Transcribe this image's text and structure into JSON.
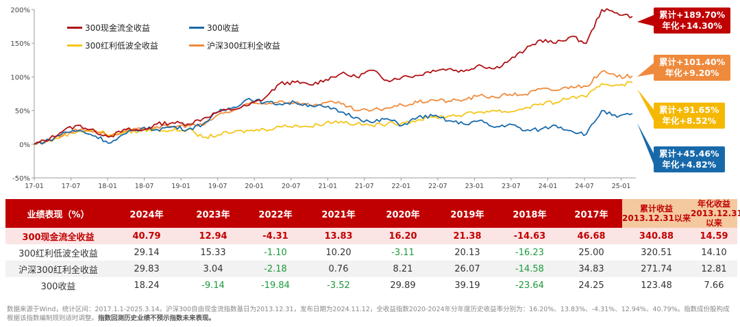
{
  "chart_data": {
    "type": "line",
    "x_ticks": [
      "17-01",
      "17-07",
      "18-01",
      "18-07",
      "19-01",
      "19-07",
      "20-01",
      "20-07",
      "21-01",
      "21-07",
      "22-01",
      "22-07",
      "23-01",
      "23-07",
      "24-01",
      "24-07",
      "25-01"
    ],
    "y_ticks": [
      "200%",
      "150%",
      "100%",
      "50%",
      "0%",
      "-50%"
    ],
    "ylim": [
      -50,
      200
    ],
    "series": [
      {
        "name": "300现金流全收益",
        "color": "#b00f12",
        "values": [
          0,
          8,
          22,
          28,
          18,
          12,
          22,
          20,
          30,
          32,
          30,
          38,
          48,
          52,
          58,
          68,
          90,
          92,
          88,
          96,
          105,
          100,
          110,
          95,
          100,
          102,
          110,
          112,
          108,
          118,
          112,
          125,
          140,
          155,
          150,
          160,
          150,
          200,
          195,
          189.7
        ]
      },
      {
        "name": "300收益",
        "color": "#1769aa",
        "values": [
          0,
          6,
          18,
          20,
          12,
          2,
          16,
          24,
          22,
          26,
          22,
          30,
          48,
          55,
          68,
          62,
          60,
          62,
          58,
          55,
          48,
          40,
          32,
          38,
          28,
          40,
          42,
          35,
          30,
          35,
          25,
          30,
          20,
          22,
          28,
          20,
          15,
          50,
          40,
          45.46
        ]
      },
      {
        "name": "300红利低波全收益",
        "color": "#f5c518",
        "values": [
          0,
          5,
          14,
          20,
          20,
          14,
          18,
          20,
          22,
          20,
          22,
          10,
          14,
          18,
          20,
          22,
          26,
          28,
          26,
          32,
          34,
          30,
          28,
          30,
          32,
          36,
          40,
          42,
          44,
          48,
          50,
          48,
          54,
          60,
          62,
          70,
          70,
          90,
          88,
          91.65
        ]
      },
      {
        "name": "沪深300红利全收益",
        "color": "#ef8a3c",
        "values": [
          0,
          6,
          16,
          22,
          20,
          12,
          20,
          22,
          26,
          26,
          28,
          28,
          44,
          50,
          60,
          60,
          64,
          62,
          58,
          62,
          60,
          50,
          50,
          54,
          58,
          62,
          66,
          64,
          66,
          72,
          70,
          74,
          74,
          82,
          80,
          86,
          86,
          108,
          100,
          101.4
        ]
      }
    ],
    "callouts": [
      {
        "line1": "累计+189.70%",
        "line2": "年化+14.30%",
        "color": "#c00000"
      },
      {
        "line1": "累计+101.40%",
        "line2": "年化+9.20%",
        "color": "#ef8a3c"
      },
      {
        "line1": "累计+91.65%",
        "line2": "年化+8.52%",
        "color": "#f5b800"
      },
      {
        "line1": "累计+45.46%",
        "line2": "年化+4.82%",
        "color": "#1769aa"
      }
    ]
  },
  "table": {
    "header": [
      "业绩表现（%）",
      "2024年",
      "2023年",
      "2022年",
      "2021年",
      "2020年",
      "2019年",
      "2018年",
      "2017年"
    ],
    "cum_header": {
      "line1": "累计收益",
      "line2": "2013.12.31以来"
    },
    "ann_header": {
      "line1": "年化收益",
      "line2": "2013.12.31以来"
    },
    "rows": [
      {
        "name": "300现金流全收益",
        "cells": [
          "40.79",
          "12.94",
          "-4.31",
          "13.83",
          "16.20",
          "21.38",
          "-14.63",
          "46.68",
          "340.88",
          "14.59"
        ]
      },
      {
        "name": "300红利低波全收益",
        "cells": [
          "29.14",
          "15.33",
          "-1.10",
          "10.20",
          "-3.11",
          "20.13",
          "-16.23",
          "25.00",
          "320.51",
          "14.10"
        ]
      },
      {
        "name": "沪深300红利全收益",
        "cells": [
          "29.83",
          "3.04",
          "-2.18",
          "0.76",
          "8.21",
          "26.07",
          "-14.58",
          "34.83",
          "271.74",
          "12.81"
        ]
      },
      {
        "name": "300收益",
        "cells": [
          "18.24",
          "-9.14",
          "-19.84",
          "-3.52",
          "29.89",
          "39.19",
          "-23.64",
          "24.25",
          "123.48",
          "7.66"
        ]
      }
    ]
  },
  "footnote": {
    "text": "数据来源于Wind，统计区间：2017.1.1-2025.3.14。沪深300自由现金流指数基日为2013.12.31，发布日期为2024.11.12，全收益指数2020-2024年分年度历史收益率分别为：16.20%、13.83%、-4.31%、12.94%、40.79%。指数成份股构成根据该指数编制规则适时调整。",
    "bold": "指数回测历史业绩不预示指数未来表现。"
  }
}
